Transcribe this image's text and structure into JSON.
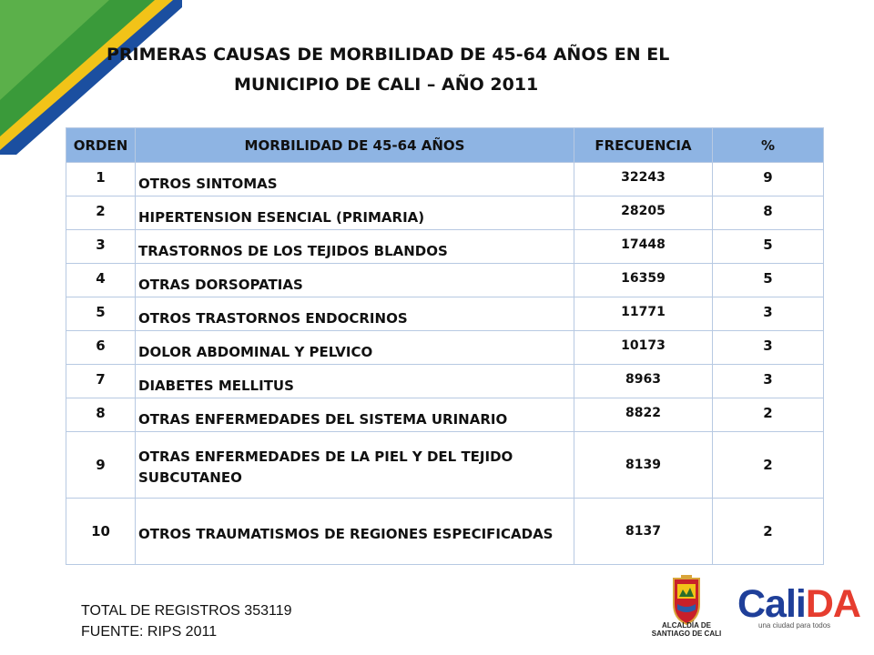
{
  "title": {
    "line1": "PRIMERAS CAUSAS DE MORBILIDAD DE 45-64 AÑOS EN EL",
    "line2": "MUNICIPIO DE CALI – AÑO 2011"
  },
  "table": {
    "headers": {
      "orden": "ORDEN",
      "morbilidad": "MORBILIDAD DE 45-64 AÑOS",
      "frecuencia": "FRECUENCIA",
      "porcentaje": "%"
    },
    "rows": [
      {
        "orden": "1",
        "morbilidad": "OTROS SINTOMAS",
        "frecuencia": "32243",
        "porcentaje": "9"
      },
      {
        "orden": "2",
        "morbilidad": "HIPERTENSION ESENCIAL (PRIMARIA)",
        "frecuencia": "28205",
        "porcentaje": "8"
      },
      {
        "orden": "3",
        "morbilidad": "TRASTORNOS DE LOS TEJIDOS BLANDOS",
        "frecuencia": "17448",
        "porcentaje": "5"
      },
      {
        "orden": "4",
        "morbilidad": "OTRAS DORSOPATIAS",
        "frecuencia": "16359",
        "porcentaje": "5"
      },
      {
        "orden": "5",
        "morbilidad": "OTROS TRASTORNOS ENDOCRINOS",
        "frecuencia": "11771",
        "porcentaje": "3"
      },
      {
        "orden": "6",
        "morbilidad": "DOLOR ABDOMINAL Y PELVICO",
        "frecuencia": "10173",
        "porcentaje": "3"
      },
      {
        "orden": "7",
        "morbilidad": "DIABETES MELLITUS",
        "frecuencia": "8963",
        "porcentaje": "3"
      },
      {
        "orden": "8",
        "morbilidad": "OTRAS ENFERMEDADES DEL SISTEMA URINARIO",
        "frecuencia": "8822",
        "porcentaje": "2"
      },
      {
        "orden": "9",
        "morbilidad": "OTRAS ENFERMEDADES DE LA PIEL Y DEL TEJIDO SUBCUTANEO",
        "frecuencia": "8139",
        "porcentaje": "2"
      },
      {
        "orden": "10",
        "morbilidad": "OTROS TRAUMATISMOS DE REGIONES ESPECIFICADAS",
        "frecuencia": "8137",
        "porcentaje": "2"
      }
    ]
  },
  "footer": {
    "total": "TOTAL DE REGISTROS  353119",
    "fuente": "FUENTE: RIPS 2011"
  },
  "logos": {
    "alcaldia": "ALCALDÍA DE SANTIAGO DE CALI",
    "calida_cali": "Cali",
    "calida_da": "DA",
    "slogan": "una ciudad para todos"
  },
  "colors": {
    "header_fill": "#8eb4e3",
    "corner_green": "#3a9a3a",
    "corner_yellow": "#f2c318",
    "corner_blue": "#1b4fa0",
    "calida_blue": "#1f3f99",
    "calida_red": "#e63d2f"
  }
}
